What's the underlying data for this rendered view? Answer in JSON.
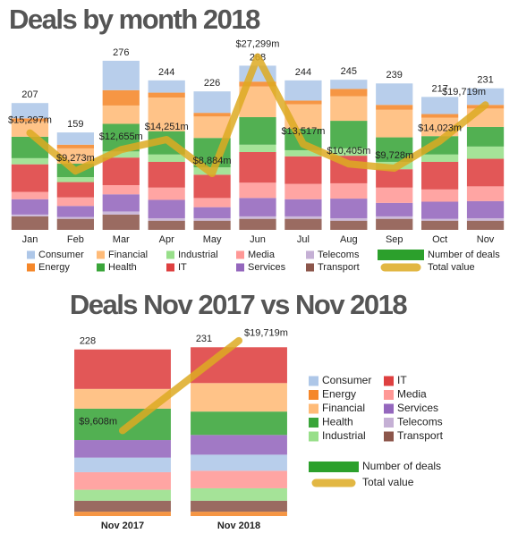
{
  "chart_data": [
    {
      "type": "bar",
      "title": "Deals by month 2018",
      "categories": [
        "Jan",
        "Feb",
        "Mar",
        "Apr",
        "May",
        "Jun",
        "Jul",
        "Aug",
        "Sep",
        "Oct",
        "Nov"
      ],
      "ylim": [
        0,
        300
      ],
      "y2lim": [
        0,
        29000
      ],
      "stacked": true,
      "series": [
        {
          "name": "Consumer",
          "color": "#aec7e8",
          "values": [
            25,
            20,
            48,
            20,
            35,
            26,
            33,
            15,
            35,
            28,
            27
          ]
        },
        {
          "name": "Energy",
          "color": "#f5872a",
          "values": [
            5,
            6,
            25,
            8,
            6,
            8,
            6,
            12,
            8,
            6,
            6
          ]
        },
        {
          "name": "Financial",
          "color": "#ffbb78",
          "values": [
            25,
            25,
            30,
            55,
            35,
            50,
            40,
            40,
            45,
            30,
            30
          ]
        },
        {
          "name": "Health",
          "color": "#3aa53a",
          "values": [
            35,
            22,
            45,
            38,
            48,
            45,
            35,
            45,
            40,
            30,
            32
          ]
        },
        {
          "name": "Industrial",
          "color": "#98df8a",
          "values": [
            10,
            8,
            10,
            12,
            12,
            12,
            10,
            12,
            12,
            12,
            20
          ]
        },
        {
          "name": "IT",
          "color": "#de4040",
          "values": [
            45,
            25,
            45,
            42,
            38,
            50,
            45,
            45,
            30,
            45,
            45
          ]
        },
        {
          "name": "Media",
          "color": "#ff9896",
          "values": [
            12,
            14,
            15,
            20,
            15,
            25,
            25,
            25,
            25,
            20,
            24
          ]
        },
        {
          "name": "Services",
          "color": "#9467bd",
          "values": [
            25,
            18,
            28,
            30,
            18,
            30,
            28,
            32,
            22,
            28,
            28
          ]
        },
        {
          "name": "Telecoms",
          "color": "#c5b0d5",
          "values": [
            3,
            3,
            5,
            4,
            4,
            4,
            4,
            4,
            4,
            3,
            4
          ]
        },
        {
          "name": "Transport",
          "color": "#8c564b",
          "values": [
            22,
            18,
            25,
            15,
            15,
            18,
            18,
            15,
            18,
            15,
            15
          ]
        },
        {
          "name": "Number of deals",
          "type": "bar",
          "color": "#2ca02c",
          "values": [
            207,
            159,
            276,
            244,
            226,
            268,
            244,
            245,
            239,
            217,
            231
          ]
        },
        {
          "name": "Total value",
          "type": "line",
          "axis": "y2",
          "color": "#ddaa22",
          "values": [
            15297,
            9273,
            12655,
            14251,
            8884,
            27299,
            13517,
            10405,
            9728,
            14023,
            19719
          ],
          "value_labels": [
            "$15,297m",
            "$9,273m",
            "$12,655m",
            "$14,251m",
            "$8,884m",
            "$27,299m",
            "$13,517m",
            "$10,405m",
            "$9,728m",
            "$14,023m",
            "$19,719m"
          ]
        }
      ]
    },
    {
      "type": "bar",
      "title": "Deals Nov 2017 vs Nov 2018",
      "categories": [
        "Nov 2017",
        "Nov 2018"
      ],
      "ylim": [
        0,
        235
      ],
      "y2lim": [
        0,
        19300
      ],
      "stacked": true,
      "series": [
        {
          "name": "Consumer",
          "color": "#aec7e8",
          "values": [
            20,
            22
          ]
        },
        {
          "name": "Energy",
          "color": "#f5872a",
          "values": [
            6,
            6
          ]
        },
        {
          "name": "Financial",
          "color": "#ffbb78",
          "values": [
            27,
            39
          ]
        },
        {
          "name": "Health",
          "color": "#3aa53a",
          "values": [
            43,
            32
          ]
        },
        {
          "name": "Industrial",
          "color": "#98df8a",
          "values": [
            15,
            17
          ]
        },
        {
          "name": "IT",
          "color": "#de4040",
          "values": [
            54,
            49
          ]
        },
        {
          "name": "Media",
          "color": "#ff9896",
          "values": [
            24,
            24
          ]
        },
        {
          "name": "Services",
          "color": "#9467bd",
          "values": [
            24,
            27
          ]
        },
        {
          "name": "Telecoms",
          "color": "#c5b0d5",
          "values": [
            0,
            0
          ]
        },
        {
          "name": "Transport",
          "color": "#8c564b",
          "values": [
            15,
            15
          ]
        },
        {
          "name": "Number of deals",
          "type": "bar",
          "color": "#2ca02c",
          "values": [
            228,
            231
          ]
        },
        {
          "name": "Total value",
          "type": "line",
          "axis": "y2",
          "color": "#ddaa22",
          "values": [
            9608,
            19719
          ],
          "value_labels": [
            "$9,608m",
            "$19,719m"
          ]
        }
      ]
    }
  ]
}
